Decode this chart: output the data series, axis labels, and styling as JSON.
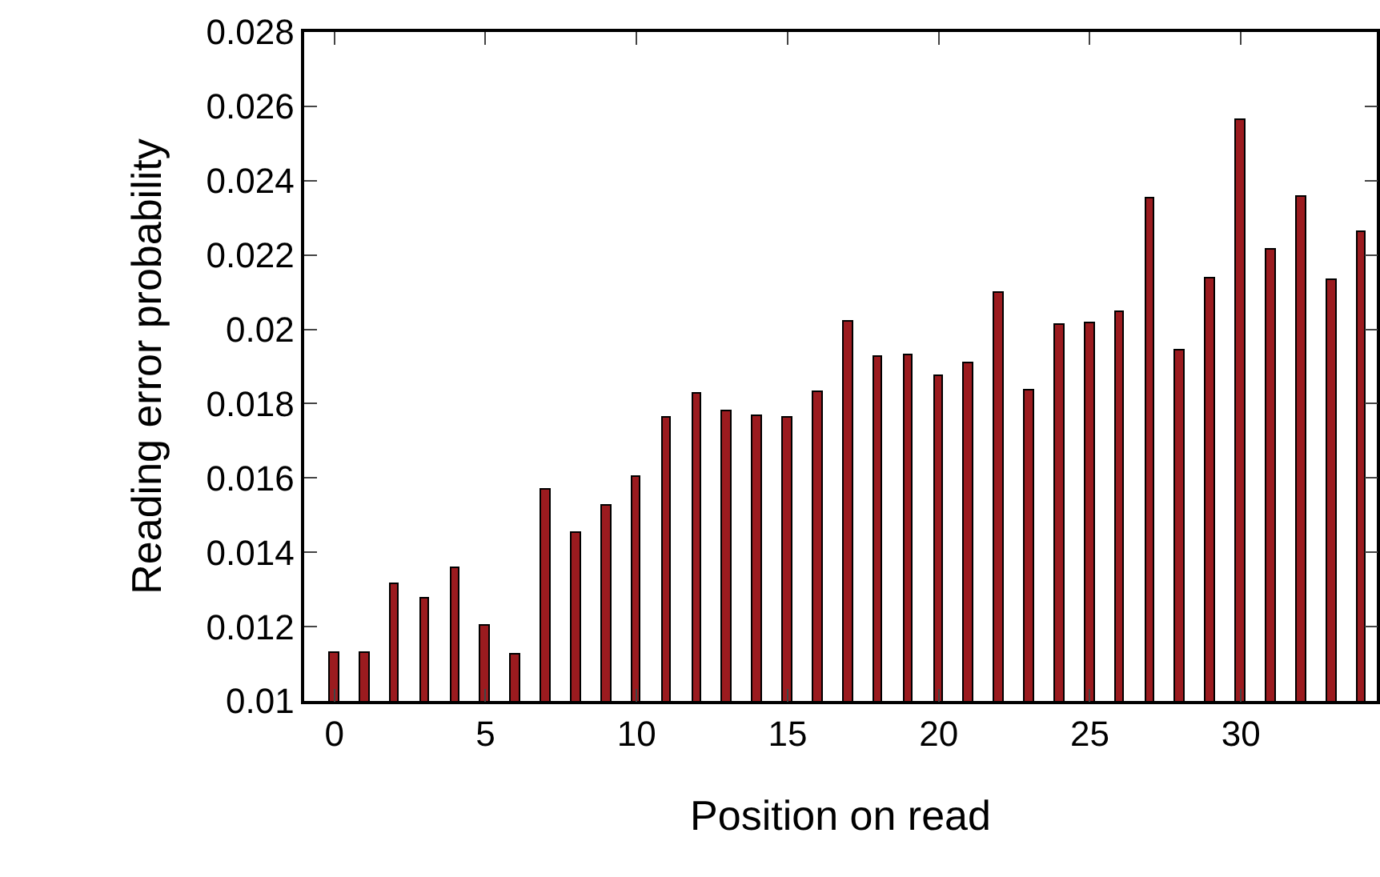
{
  "chart_data": {
    "type": "bar",
    "xlabel": "Position on read",
    "ylabel": "Reading error probability",
    "x": [
      0,
      1,
      2,
      3,
      4,
      5,
      6,
      7,
      8,
      9,
      10,
      11,
      12,
      13,
      14,
      15,
      16,
      17,
      18,
      19,
      20,
      21,
      22,
      23,
      24,
      25,
      26,
      27,
      28,
      29,
      30,
      31,
      32,
      33,
      34
    ],
    "values": [
      0.01128,
      0.01131,
      0.01315,
      0.01275,
      0.01356,
      0.01204,
      0.01126,
      0.01568,
      0.01453,
      0.01526,
      0.01601,
      0.01762,
      0.01826,
      0.01781,
      0.01766,
      0.01762,
      0.01832,
      0.02019,
      0.01924,
      0.01932,
      0.01874,
      0.01909,
      0.021,
      0.01835,
      0.02012,
      0.02016,
      0.02047,
      0.02354,
      0.01941,
      0.02135,
      0.02562,
      0.02215,
      0.02357,
      0.02132,
      0.02263
    ],
    "color": "#9b1b1f",
    "xlim": [
      -1,
      34.5
    ],
    "xticks": [
      0,
      5,
      10,
      15,
      20,
      25,
      30
    ],
    "ylim": [
      0.01,
      0.028
    ],
    "yticks": [
      0.01,
      0.012,
      0.014,
      0.016,
      0.018,
      0.02,
      0.022,
      0.024,
      0.026,
      0.028
    ]
  }
}
